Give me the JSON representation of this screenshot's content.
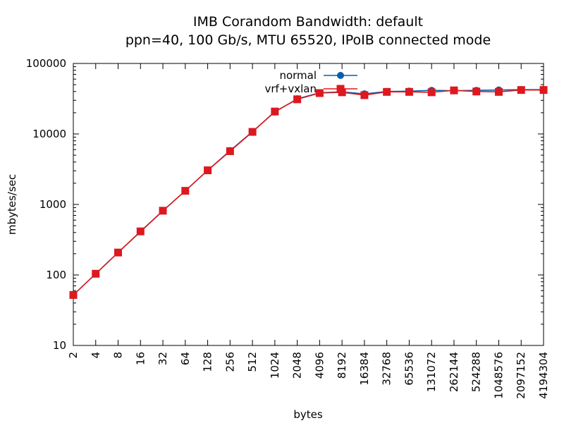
{
  "chart_data": {
    "type": "line",
    "title": "IMB Corandom Bandwidth: default",
    "subtitle": "ppn=40, 100 Gb/s, MTU 65520, IPoIB connected mode",
    "xlabel": "bytes",
    "ylabel": "mbytes/sec",
    "xscale": "log",
    "yscale": "log",
    "xlim": [
      2,
      4194304
    ],
    "ylim": [
      10,
      100000
    ],
    "x_ticks": [
      "2",
      "4",
      "8",
      "16",
      "32",
      "64",
      "128",
      "256",
      "512",
      "1024",
      "2048",
      "4096",
      "8192",
      "16384",
      "32768",
      "65536",
      "131072",
      "262144",
      "524288",
      "1048576",
      "2097152",
      "4194304"
    ],
    "y_ticks": [
      "10",
      "100",
      "1000",
      "10000",
      "100000"
    ],
    "grid": false,
    "legend_position": "top-center",
    "x": [
      2,
      4,
      8,
      16,
      32,
      64,
      128,
      256,
      512,
      1024,
      2048,
      4096,
      8192,
      16384,
      32768,
      65536,
      131072,
      262144,
      524288,
      1048576,
      2097152,
      4194304
    ],
    "series": [
      {
        "name": "normal",
        "color": "#0060ad",
        "marker": "circle",
        "values": [
          52,
          104,
          208,
          410,
          810,
          1560,
          3050,
          5800,
          10800,
          20500,
          31500,
          38500,
          39500,
          37000,
          40000,
          40500,
          41500,
          41000,
          41500,
          42000,
          42500,
          42500
        ]
      },
      {
        "name": "vrf+vxlan",
        "color": "#dd181f",
        "marker": "square",
        "values": [
          52,
          104,
          208,
          415,
          815,
          1560,
          3050,
          5700,
          10700,
          20800,
          31000,
          38000,
          39000,
          35500,
          39500,
          39500,
          39000,
          41500,
          40000,
          39500,
          42000,
          42000
        ]
      }
    ]
  }
}
